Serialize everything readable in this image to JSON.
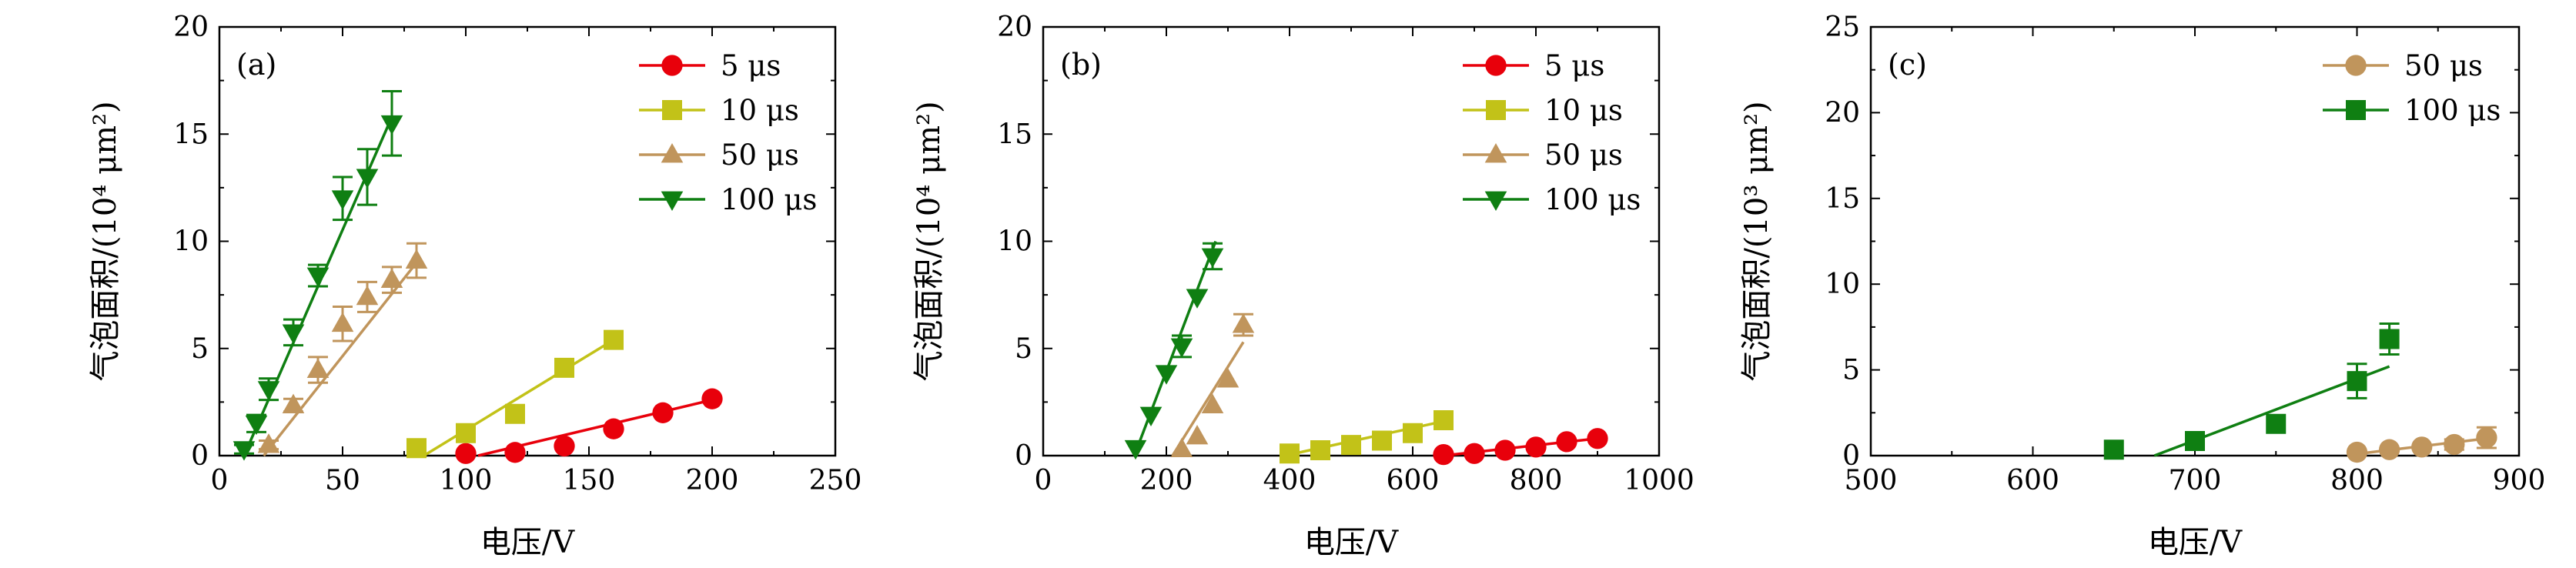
{
  "chart_data": [
    {
      "panel_label": "(a)",
      "type": "scatter",
      "xlabel": "电压/V",
      "ylabel": "气泡面积/(10⁴ μm²)",
      "xlim": [
        0,
        250
      ],
      "ylim": [
        0,
        20
      ],
      "xticks": [
        0,
        50,
        100,
        150,
        200,
        250
      ],
      "yticks": [
        0,
        5,
        10,
        15,
        20
      ],
      "legend_position": "top-right",
      "series": [
        {
          "name": "5 μs",
          "color": "#e8000b",
          "marker": "circle",
          "x": [
            100,
            120,
            140,
            160,
            180,
            200
          ],
          "y": [
            0.1,
            0.15,
            0.45,
            1.25,
            2.0,
            2.65
          ],
          "err": [
            0,
            0,
            0,
            0,
            0,
            0
          ],
          "fit": [
            [
              105,
              0.0
            ],
            [
              200,
              2.6
            ]
          ]
        },
        {
          "name": "10 μs",
          "color": "#c2c218",
          "marker": "square",
          "x": [
            80,
            100,
            120,
            140,
            160
          ],
          "y": [
            0.35,
            1.05,
            1.95,
            4.1,
            5.4
          ],
          "err": [
            0,
            0,
            0,
            0,
            0
          ],
          "fit": [
            [
              83,
              0.0
            ],
            [
              160,
              5.4
            ]
          ]
        },
        {
          "name": "50 μs",
          "color": "#c0955c",
          "marker": "triangle-up",
          "x": [
            20,
            30,
            40,
            50,
            60,
            70,
            80
          ],
          "y": [
            0.5,
            2.35,
            4.0,
            6.15,
            7.4,
            8.2,
            9.1
          ],
          "err": [
            0.2,
            0.3,
            0.6,
            0.8,
            0.7,
            0.6,
            0.8
          ],
          "fit": [
            [
              18,
              0.0
            ],
            [
              80,
              9.0
            ]
          ]
        },
        {
          "name": "100 μs",
          "color": "#0f7f12",
          "marker": "triangle-down",
          "x": [
            10,
            15,
            20,
            30,
            40,
            50,
            60,
            70
          ],
          "y": [
            0.3,
            1.5,
            3.1,
            5.75,
            8.4,
            12.0,
            13.0,
            15.5
          ],
          "err": [
            0.2,
            0.4,
            0.5,
            0.6,
            0.5,
            1.0,
            1.3,
            1.5
          ],
          "fit": [
            [
              10,
              0.0
            ],
            [
              70,
              15.8
            ]
          ]
        }
      ]
    },
    {
      "panel_label": "(b)",
      "type": "scatter",
      "xlabel": "电压/V",
      "ylabel": "气泡面积/(10⁴ μm²)",
      "xlim": [
        0,
        1000
      ],
      "ylim": [
        0,
        20
      ],
      "xticks": [
        0,
        200,
        400,
        600,
        800,
        1000
      ],
      "yticks": [
        0,
        5,
        10,
        15,
        20
      ],
      "legend_position": "top-right",
      "series": [
        {
          "name": "5 μs",
          "color": "#e8000b",
          "marker": "circle",
          "x": [
            650,
            700,
            750,
            800,
            850,
            900
          ],
          "y": [
            0.05,
            0.1,
            0.25,
            0.4,
            0.65,
            0.8
          ],
          "err": [
            0,
            0,
            0,
            0,
            0,
            0
          ],
          "fit": [
            [
              650,
              0.0
            ],
            [
              900,
              0.8
            ]
          ]
        },
        {
          "name": "10 μs",
          "color": "#c2c218",
          "marker": "square",
          "x": [
            400,
            450,
            500,
            550,
            600,
            650
          ],
          "y": [
            0.1,
            0.25,
            0.5,
            0.7,
            1.05,
            1.65
          ],
          "err": [
            0,
            0,
            0,
            0,
            0,
            0
          ],
          "fit": [
            [
              400,
              0.05
            ],
            [
              650,
              1.6
            ]
          ]
        },
        {
          "name": "50 μs",
          "color": "#c0955c",
          "marker": "triangle-up",
          "x": [
            225,
            250,
            275,
            300,
            325
          ],
          "y": [
            0.3,
            0.9,
            2.35,
            3.55,
            6.1
          ],
          "err": [
            0,
            0,
            0,
            0,
            0.5
          ],
          "fit": [
            [
              210,
              0.0
            ],
            [
              325,
              5.3
            ]
          ]
        },
        {
          "name": "100 μs",
          "color": "#0f7f12",
          "marker": "triangle-down",
          "x": [
            150,
            175,
            200,
            225,
            250,
            275
          ],
          "y": [
            0.35,
            1.9,
            3.85,
            5.1,
            7.4,
            9.3
          ],
          "err": [
            0,
            0,
            0,
            0.5,
            0,
            0.6
          ],
          "fit": [
            [
              148,
              0.0
            ],
            [
              280,
              10.0
            ]
          ]
        }
      ]
    },
    {
      "panel_label": "(c)",
      "type": "scatter",
      "xlabel": "电压/V",
      "ylabel": "气泡面积/(10³ μm²)",
      "xlim": [
        500,
        900
      ],
      "ylim": [
        0,
        25
      ],
      "xticks": [
        500,
        600,
        700,
        800,
        900
      ],
      "yticks": [
        0,
        5,
        10,
        15,
        20,
        25
      ],
      "legend_position": "top-right",
      "series": [
        {
          "name": "50 μs",
          "color": "#c0955c",
          "marker": "circle",
          "x": [
            800,
            820,
            840,
            860,
            880
          ],
          "y": [
            0.2,
            0.35,
            0.5,
            0.65,
            1.05
          ],
          "err": [
            0,
            0,
            0,
            0.3,
            0.6
          ],
          "fit": [
            [
              800,
              0.1
            ],
            [
              880,
              1.0
            ]
          ]
        },
        {
          "name": "100 μs",
          "color": "#0f7f12",
          "marker": "square",
          "x": [
            650,
            700,
            750,
            800,
            820
          ],
          "y": [
            0.35,
            0.85,
            1.85,
            4.35,
            6.8
          ],
          "err": [
            0,
            0.3,
            0,
            1.0,
            0.9
          ],
          "fit": [
            [
              675,
              0.0
            ],
            [
              820,
              5.2
            ]
          ]
        }
      ]
    }
  ]
}
